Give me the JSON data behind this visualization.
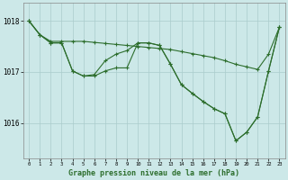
{
  "background_color": "#cce8e8",
  "grid_color": "#aacccc",
  "line_color": "#2d6e2d",
  "title": "Graphe pression niveau de la mer (hPa)",
  "yticks": [
    1016,
    1017,
    1018
  ],
  "ylim": [
    1015.3,
    1018.35
  ],
  "xlim": [
    -0.5,
    23.5
  ],
  "hours": [
    0,
    1,
    2,
    3,
    4,
    5,
    6,
    7,
    8,
    9,
    10,
    11,
    12,
    13,
    14,
    15,
    16,
    17,
    18,
    19,
    20,
    21,
    22,
    23
  ],
  "series_a": [
    1018.0,
    1017.73,
    1017.6,
    1017.6,
    1017.6,
    1017.6,
    1017.58,
    1017.56,
    1017.54,
    1017.52,
    1017.5,
    1017.48,
    1017.46,
    1017.44,
    1017.4,
    1017.36,
    1017.32,
    1017.28,
    1017.22,
    1017.15,
    1017.1,
    1017.05,
    1017.35,
    1017.88
  ],
  "series_b": [
    1018.0,
    1017.73,
    1017.57,
    1017.57,
    1017.02,
    1016.92,
    1016.95,
    1017.22,
    1017.35,
    1017.42,
    1017.57,
    1017.57,
    1017.52,
    1017.15,
    1016.75,
    1016.58,
    1016.42,
    1016.28,
    1016.18,
    1015.65,
    1015.82,
    1016.12,
    1017.02,
    1017.88
  ],
  "series_c": [
    1018.0,
    1017.73,
    1017.57,
    1017.57,
    1017.02,
    1016.92,
    1016.92,
    1017.02,
    1017.08,
    1017.08,
    1017.57,
    1017.57,
    1017.52,
    1017.15,
    1016.75,
    1016.58,
    1016.42,
    1016.28,
    1016.18,
    1015.65,
    1015.82,
    1016.12,
    1017.02,
    1017.88
  ]
}
